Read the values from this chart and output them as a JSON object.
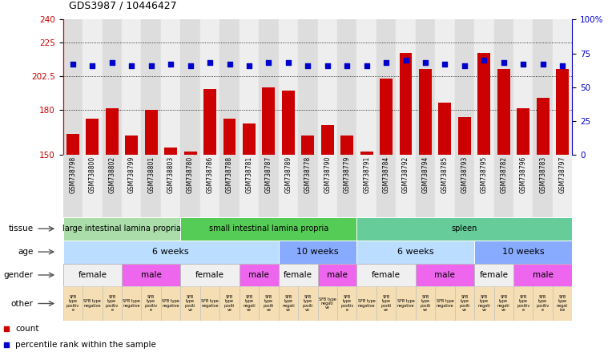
{
  "title": "GDS3987 / 10446427",
  "samples": [
    "GSM738798",
    "GSM738800",
    "GSM738802",
    "GSM738799",
    "GSM738801",
    "GSM738803",
    "GSM738780",
    "GSM738786",
    "GSM738788",
    "GSM738781",
    "GSM738787",
    "GSM738789",
    "GSM738778",
    "GSM738790",
    "GSM738779",
    "GSM738791",
    "GSM738784",
    "GSM738792",
    "GSM738794",
    "GSM738785",
    "GSM738793",
    "GSM738795",
    "GSM738782",
    "GSM738796",
    "GSM738783",
    "GSM738797"
  ],
  "counts": [
    164,
    174,
    181,
    163,
    180,
    155,
    152,
    194,
    174,
    171,
    195,
    193,
    163,
    170,
    163,
    152,
    201,
    218,
    207,
    185,
    175,
    218,
    207,
    181,
    188,
    207
  ],
  "percentiles": [
    67,
    66,
    68,
    66,
    66,
    67,
    66,
    68,
    67,
    66,
    68,
    68,
    66,
    66,
    66,
    66,
    68,
    70,
    68,
    67,
    66,
    70,
    68,
    67,
    67,
    66
  ],
  "ylim_left": [
    150,
    240
  ],
  "ylim_right": [
    0,
    100
  ],
  "yticks_left": [
    150,
    180,
    202.5,
    225,
    240
  ],
  "yticks_right": [
    0,
    25,
    50,
    75,
    100
  ],
  "ytick_labels_left": [
    "150",
    "180",
    "202.5",
    "225",
    "240"
  ],
  "ytick_labels_right": [
    "0",
    "25",
    "50",
    "75",
    "100%"
  ],
  "grid_lines": [
    225,
    202.5,
    180
  ],
  "bar_color": "#cc0000",
  "dot_color": "#0000cc",
  "tissue_groups": [
    {
      "label": "large intestinal lamina propria",
      "start": 0,
      "end": 6,
      "color": "#aaddaa"
    },
    {
      "label": "small intestinal lamina propria",
      "start": 6,
      "end": 15,
      "color": "#55cc55"
    },
    {
      "label": "spleen",
      "start": 15,
      "end": 26,
      "color": "#66cc99"
    }
  ],
  "age_groups": [
    {
      "label": "6 weeks",
      "start": 0,
      "end": 11,
      "color": "#bbddff"
    },
    {
      "label": "10 weeks",
      "start": 11,
      "end": 15,
      "color": "#88aaff"
    },
    {
      "label": "6 weeks",
      "start": 15,
      "end": 21,
      "color": "#bbddff"
    },
    {
      "label": "10 weeks",
      "start": 21,
      "end": 26,
      "color": "#88aaff"
    }
  ],
  "gender_groups": [
    {
      "label": "female",
      "start": 0,
      "end": 3,
      "color": "#f0f0f0"
    },
    {
      "label": "male",
      "start": 3,
      "end": 6,
      "color": "#ee66ee"
    },
    {
      "label": "female",
      "start": 6,
      "end": 9,
      "color": "#f0f0f0"
    },
    {
      "label": "male",
      "start": 9,
      "end": 11,
      "color": "#ee66ee"
    },
    {
      "label": "female",
      "start": 11,
      "end": 13,
      "color": "#f0f0f0"
    },
    {
      "label": "male",
      "start": 13,
      "end": 15,
      "color": "#ee66ee"
    },
    {
      "label": "female",
      "start": 15,
      "end": 18,
      "color": "#f0f0f0"
    },
    {
      "label": "male",
      "start": 18,
      "end": 21,
      "color": "#ee66ee"
    },
    {
      "label": "female",
      "start": 21,
      "end": 23,
      "color": "#f0f0f0"
    },
    {
      "label": "male",
      "start": 23,
      "end": 26,
      "color": "#ee66ee"
    }
  ],
  "other_labels": [
    "SFB\ntype\npositiv\ne",
    "SFB type\nnegative",
    "SFB\ntype\npositiv\ne",
    "SFB type\nnegative",
    "SFB\ntype\npositiv\ne",
    "SFB type\nnegative",
    "SFB\ntype\npositi\nve",
    "SFB type\nnegative",
    "SFB\ntype\npositi\nve",
    "SFB\ntype\nnegati\nve",
    "SFB\ntype\npositi\nve",
    "SFB\ntype\nnegati\nve",
    "SFB\ntype\npositi\nve",
    "SFB type\nnegati\nve",
    "SFB\ntype\npositiv\ne",
    "SFB type\nnegative",
    "SFB\ntype\npositi\nve",
    "SFB type\nnegative",
    "SFB\ntype\npositi\nve",
    "SFB type\nnegative",
    "SFB\ntype\npositi\nve",
    "SFB\ntype\nnegati\nve",
    "SFB\ntype\nnegati\nve",
    "SFB\ntype\npositiv\ne",
    "SFB\ntype\npositiv\ne",
    "SFB\ntype\nnegat\nive"
  ],
  "n_samples": 26,
  "legend_items": [
    {
      "label": "count",
      "color": "#cc0000"
    },
    {
      "label": "percentile rank within the sample",
      "color": "#0000cc"
    }
  ],
  "background_color": "#ffffff",
  "plot_bg_color": "#ffffff",
  "col_bg_even": "#dddddd",
  "col_bg_odd": "#eeeeee"
}
